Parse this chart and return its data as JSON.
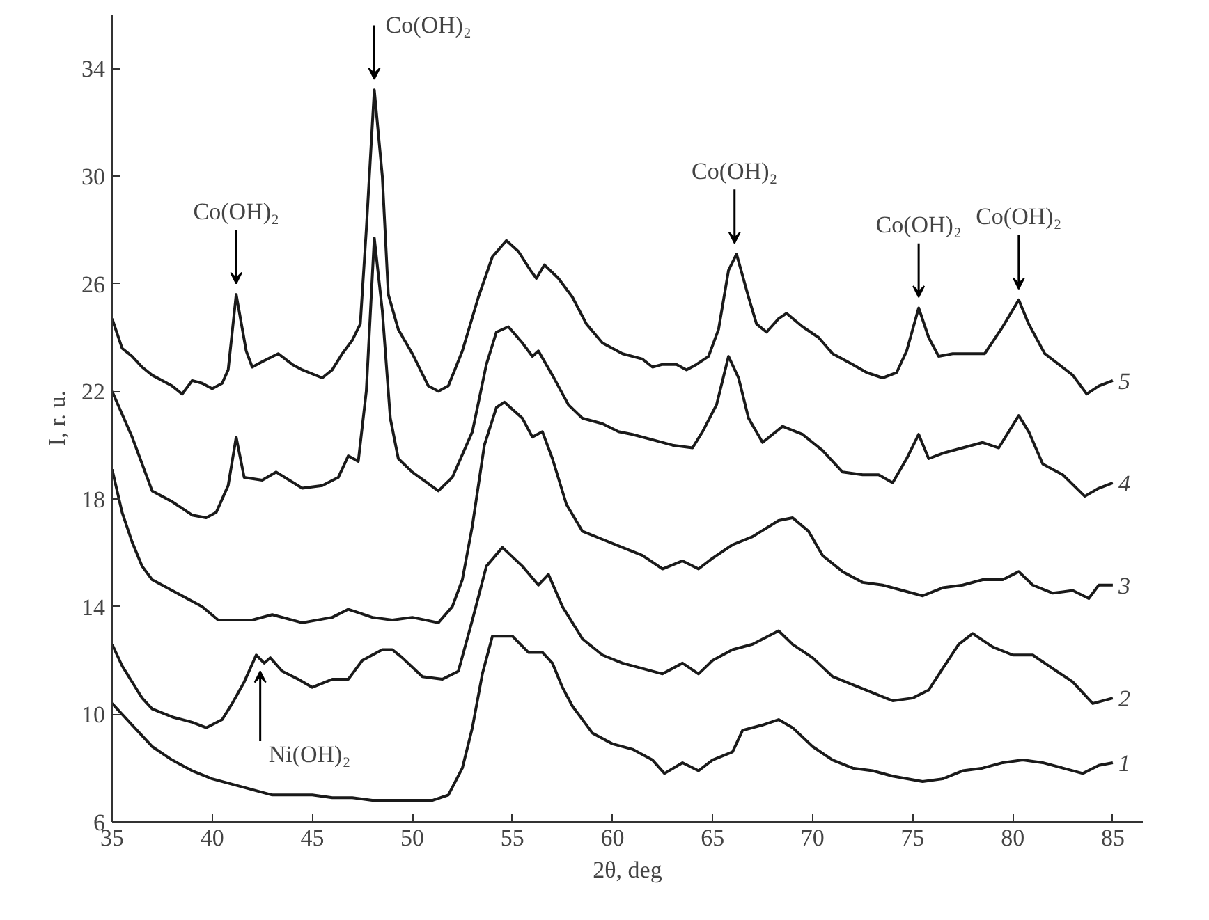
{
  "chart_data": {
    "type": "line",
    "xlabel": "2θ, deg",
    "ylabel": "I, r. u.",
    "xlim": [
      35,
      86.5
    ],
    "ylim": [
      6,
      36
    ],
    "xticks": [
      35,
      40,
      45,
      50,
      55,
      60,
      65,
      70,
      75,
      80,
      85
    ],
    "yticks": [
      6,
      10,
      14,
      18,
      22,
      26,
      30,
      34
    ],
    "grid": false,
    "marker": "none",
    "line_style": "solid",
    "series": [
      {
        "name": "1",
        "color": "#1a1a1a",
        "x": [
          35,
          36,
          37,
          38,
          39,
          40,
          41,
          42,
          43,
          44,
          45,
          46,
          47,
          48,
          49,
          50,
          51,
          51.8,
          52.5,
          53,
          53.5,
          54,
          55,
          55.8,
          56.5,
          57,
          57.5,
          58,
          59,
          60,
          61,
          62,
          62.6,
          63.5,
          64.3,
          65,
          66,
          66.5,
          67.5,
          68.3,
          69,
          70,
          71,
          72,
          73,
          74,
          75.5,
          76.5,
          77.5,
          78.5,
          79.5,
          80.5,
          81.5,
          82.5,
          83.5,
          84.3,
          85
        ],
        "values": [
          10.4,
          9.6,
          8.8,
          8.3,
          7.9,
          7.6,
          7.4,
          7.2,
          7.0,
          7.0,
          7.0,
          6.9,
          6.9,
          6.8,
          6.8,
          6.8,
          6.8,
          7.0,
          8.0,
          9.5,
          11.5,
          12.9,
          12.9,
          12.3,
          12.3,
          11.9,
          11.0,
          10.3,
          9.3,
          8.9,
          8.7,
          8.3,
          7.8,
          8.2,
          7.9,
          8.3,
          8.6,
          9.4,
          9.6,
          9.8,
          9.5,
          8.8,
          8.3,
          8.0,
          7.9,
          7.7,
          7.5,
          7.6,
          7.9,
          8.0,
          8.2,
          8.3,
          8.2,
          8.0,
          7.8,
          8.1,
          8.2
        ]
      },
      {
        "name": "2",
        "color": "#1a1a1a",
        "x": [
          35,
          35.5,
          36,
          36.5,
          37,
          38,
          39,
          39.7,
          40.5,
          41,
          41.6,
          42.2,
          42.6,
          42.9,
          43.5,
          44.3,
          45,
          46,
          46.8,
          47.5,
          48.5,
          49,
          49.5,
          50.5,
          51.5,
          52.3,
          53,
          53.7,
          54.5,
          55.5,
          56.3,
          56.8,
          57.5,
          58.5,
          59.5,
          60.5,
          61.5,
          62.5,
          63.5,
          64.3,
          65,
          66,
          67,
          68.3,
          69,
          70,
          71,
          72,
          73,
          74,
          75,
          75.8,
          76.5,
          77.3,
          78,
          79,
          80,
          81,
          82,
          83,
          84,
          85
        ],
        "values": [
          12.6,
          11.8,
          11.2,
          10.6,
          10.2,
          9.9,
          9.7,
          9.5,
          9.8,
          10.4,
          11.2,
          12.2,
          11.9,
          12.1,
          11.6,
          11.3,
          11.0,
          11.3,
          11.3,
          12.0,
          12.4,
          12.4,
          12.1,
          11.4,
          11.3,
          11.6,
          13.5,
          15.5,
          16.2,
          15.5,
          14.8,
          15.2,
          14.0,
          12.8,
          12.2,
          11.9,
          11.7,
          11.5,
          11.9,
          11.5,
          12.0,
          12.4,
          12.6,
          13.1,
          12.6,
          12.1,
          11.4,
          11.1,
          10.8,
          10.5,
          10.6,
          10.9,
          11.7,
          12.6,
          13.0,
          12.5,
          12.2,
          12.2,
          11.7,
          11.2,
          10.4,
          10.6
        ]
      },
      {
        "name": "3",
        "color": "#1a1a1a",
        "x": [
          35,
          35.5,
          36,
          36.5,
          37,
          38,
          39,
          39.5,
          40.3,
          41,
          42,
          43,
          44.5,
          46,
          46.8,
          48,
          49,
          50,
          51.3,
          52,
          52.5,
          53,
          53.6,
          54.2,
          54.6,
          55.5,
          56,
          56.5,
          57,
          57.7,
          58.5,
          59.5,
          60.5,
          61.5,
          62.5,
          63.5,
          64.3,
          65,
          66,
          67,
          68.3,
          69,
          69.8,
          70.5,
          71.5,
          72.5,
          73.5,
          74.5,
          75.5,
          76.5,
          77.5,
          78.5,
          79.5,
          80.3,
          81,
          82,
          83,
          83.8,
          84.3,
          85
        ],
        "values": [
          19.1,
          17.5,
          16.4,
          15.5,
          15.0,
          14.6,
          14.2,
          14.0,
          13.5,
          13.5,
          13.5,
          13.7,
          13.4,
          13.6,
          13.9,
          13.6,
          13.5,
          13.6,
          13.4,
          14.0,
          15.0,
          17.0,
          20.0,
          21.4,
          21.6,
          21.0,
          20.3,
          20.5,
          19.5,
          17.8,
          16.8,
          16.5,
          16.2,
          15.9,
          15.4,
          15.7,
          15.4,
          15.8,
          16.3,
          16.6,
          17.2,
          17.3,
          16.8,
          15.9,
          15.3,
          14.9,
          14.8,
          14.6,
          14.4,
          14.7,
          14.8,
          15.0,
          15.0,
          15.3,
          14.8,
          14.5,
          14.6,
          14.3,
          14.8,
          14.8
        ]
      },
      {
        "name": "4",
        "color": "#1a1a1a",
        "x": [
          35,
          36,
          37,
          38,
          39,
          39.7,
          40.2,
          40.8,
          41.2,
          41.6,
          42.5,
          43.2,
          44.5,
          45.5,
          46.3,
          46.8,
          47.3,
          47.7,
          48.1,
          48.5,
          48.9,
          49.3,
          50,
          51.3,
          52,
          53,
          53.7,
          54.2,
          54.8,
          55.5,
          56,
          56.3,
          57,
          57.8,
          58.5,
          59.5,
          60.3,
          61,
          62,
          63,
          64,
          64.5,
          65.2,
          65.8,
          66.3,
          66.8,
          67.5,
          68.5,
          69.5,
          70.5,
          71.5,
          72.5,
          73.3,
          74,
          74.7,
          75.3,
          75.8,
          76.5,
          77.5,
          78.5,
          79.3,
          80.3,
          80.8,
          81.5,
          82.5,
          83.6,
          84.3,
          85
        ],
        "values": [
          22.0,
          20.3,
          18.3,
          17.9,
          17.4,
          17.3,
          17.5,
          18.5,
          20.3,
          18.8,
          18.7,
          19.0,
          18.4,
          18.5,
          18.8,
          19.6,
          19.4,
          22.0,
          27.7,
          25.0,
          21.0,
          19.5,
          19.0,
          18.3,
          18.8,
          20.5,
          23.0,
          24.2,
          24.4,
          23.8,
          23.3,
          23.5,
          22.6,
          21.5,
          21.0,
          20.8,
          20.5,
          20.4,
          20.2,
          20.0,
          19.9,
          20.5,
          21.5,
          23.3,
          22.5,
          21.0,
          20.1,
          20.7,
          20.4,
          19.8,
          19.0,
          18.9,
          18.9,
          18.6,
          19.5,
          20.4,
          19.5,
          19.7,
          19.9,
          20.1,
          19.9,
          21.1,
          20.5,
          19.3,
          18.9,
          18.1,
          18.4,
          18.6
        ]
      },
      {
        "name": "5",
        "color": "#1a1a1a",
        "x": [
          35,
          35.5,
          36,
          36.5,
          37,
          38,
          38.5,
          39,
          39.5,
          40,
          40.5,
          40.8,
          41.2,
          41.7,
          42,
          42.5,
          43.3,
          44,
          44.5,
          45.5,
          46,
          46.5,
          47,
          47.4,
          47.7,
          48.1,
          48.5,
          48.8,
          49.3,
          50,
          50.8,
          51.3,
          51.8,
          52.5,
          53.3,
          54,
          54.7,
          55.3,
          55.9,
          56.2,
          56.6,
          57.3,
          58,
          58.7,
          59.5,
          60.5,
          61.5,
          62,
          62.5,
          63.2,
          63.7,
          64.2,
          64.8,
          65.3,
          65.8,
          66.2,
          66.8,
          67.2,
          67.7,
          68.3,
          68.7,
          69.5,
          70.3,
          71,
          72,
          72.7,
          73.5,
          74.2,
          74.7,
          75.3,
          75.8,
          76.3,
          77,
          78,
          78.6,
          79.5,
          80.3,
          80.8,
          81.6,
          82.3,
          83,
          83.7,
          84.3,
          85
        ],
        "values": [
          24.7,
          23.6,
          23.3,
          22.9,
          22.6,
          22.2,
          21.9,
          22.4,
          22.3,
          22.1,
          22.3,
          22.8,
          25.6,
          23.5,
          22.9,
          23.1,
          23.4,
          23.0,
          22.8,
          22.5,
          22.8,
          23.4,
          23.9,
          24.5,
          28.0,
          33.2,
          30.0,
          25.6,
          24.3,
          23.4,
          22.2,
          22.0,
          22.2,
          23.5,
          25.5,
          27.0,
          27.6,
          27.2,
          26.5,
          26.2,
          26.7,
          26.2,
          25.5,
          24.5,
          23.8,
          23.4,
          23.2,
          22.9,
          23.0,
          23.0,
          22.8,
          23.0,
          23.3,
          24.3,
          26.5,
          27.1,
          25.5,
          24.5,
          24.2,
          24.7,
          24.9,
          24.4,
          24.0,
          23.4,
          23.0,
          22.7,
          22.5,
          22.7,
          23.5,
          25.1,
          24.0,
          23.3,
          23.4,
          23.4,
          23.4,
          24.4,
          25.4,
          24.5,
          23.4,
          23.0,
          22.6,
          21.9,
          22.2,
          22.4
        ]
      }
    ],
    "annotations": [
      {
        "text": "Co(OH)₂",
        "x": 41.2,
        "y": 25.6
      },
      {
        "text": "Co(OH)₂",
        "x": 48.1,
        "y": 33.2
      },
      {
        "text": "Co(OH)₂",
        "x": 66.1,
        "y": 27.1
      },
      {
        "text": "Co(OH)₂",
        "x": 75.3,
        "y": 25.1
      },
      {
        "text": "Co(OH)₂",
        "x": 80.3,
        "y": 25.4
      },
      {
        "text": "Ni(OH)₂",
        "x": 42.4,
        "y": 12.0
      }
    ]
  }
}
